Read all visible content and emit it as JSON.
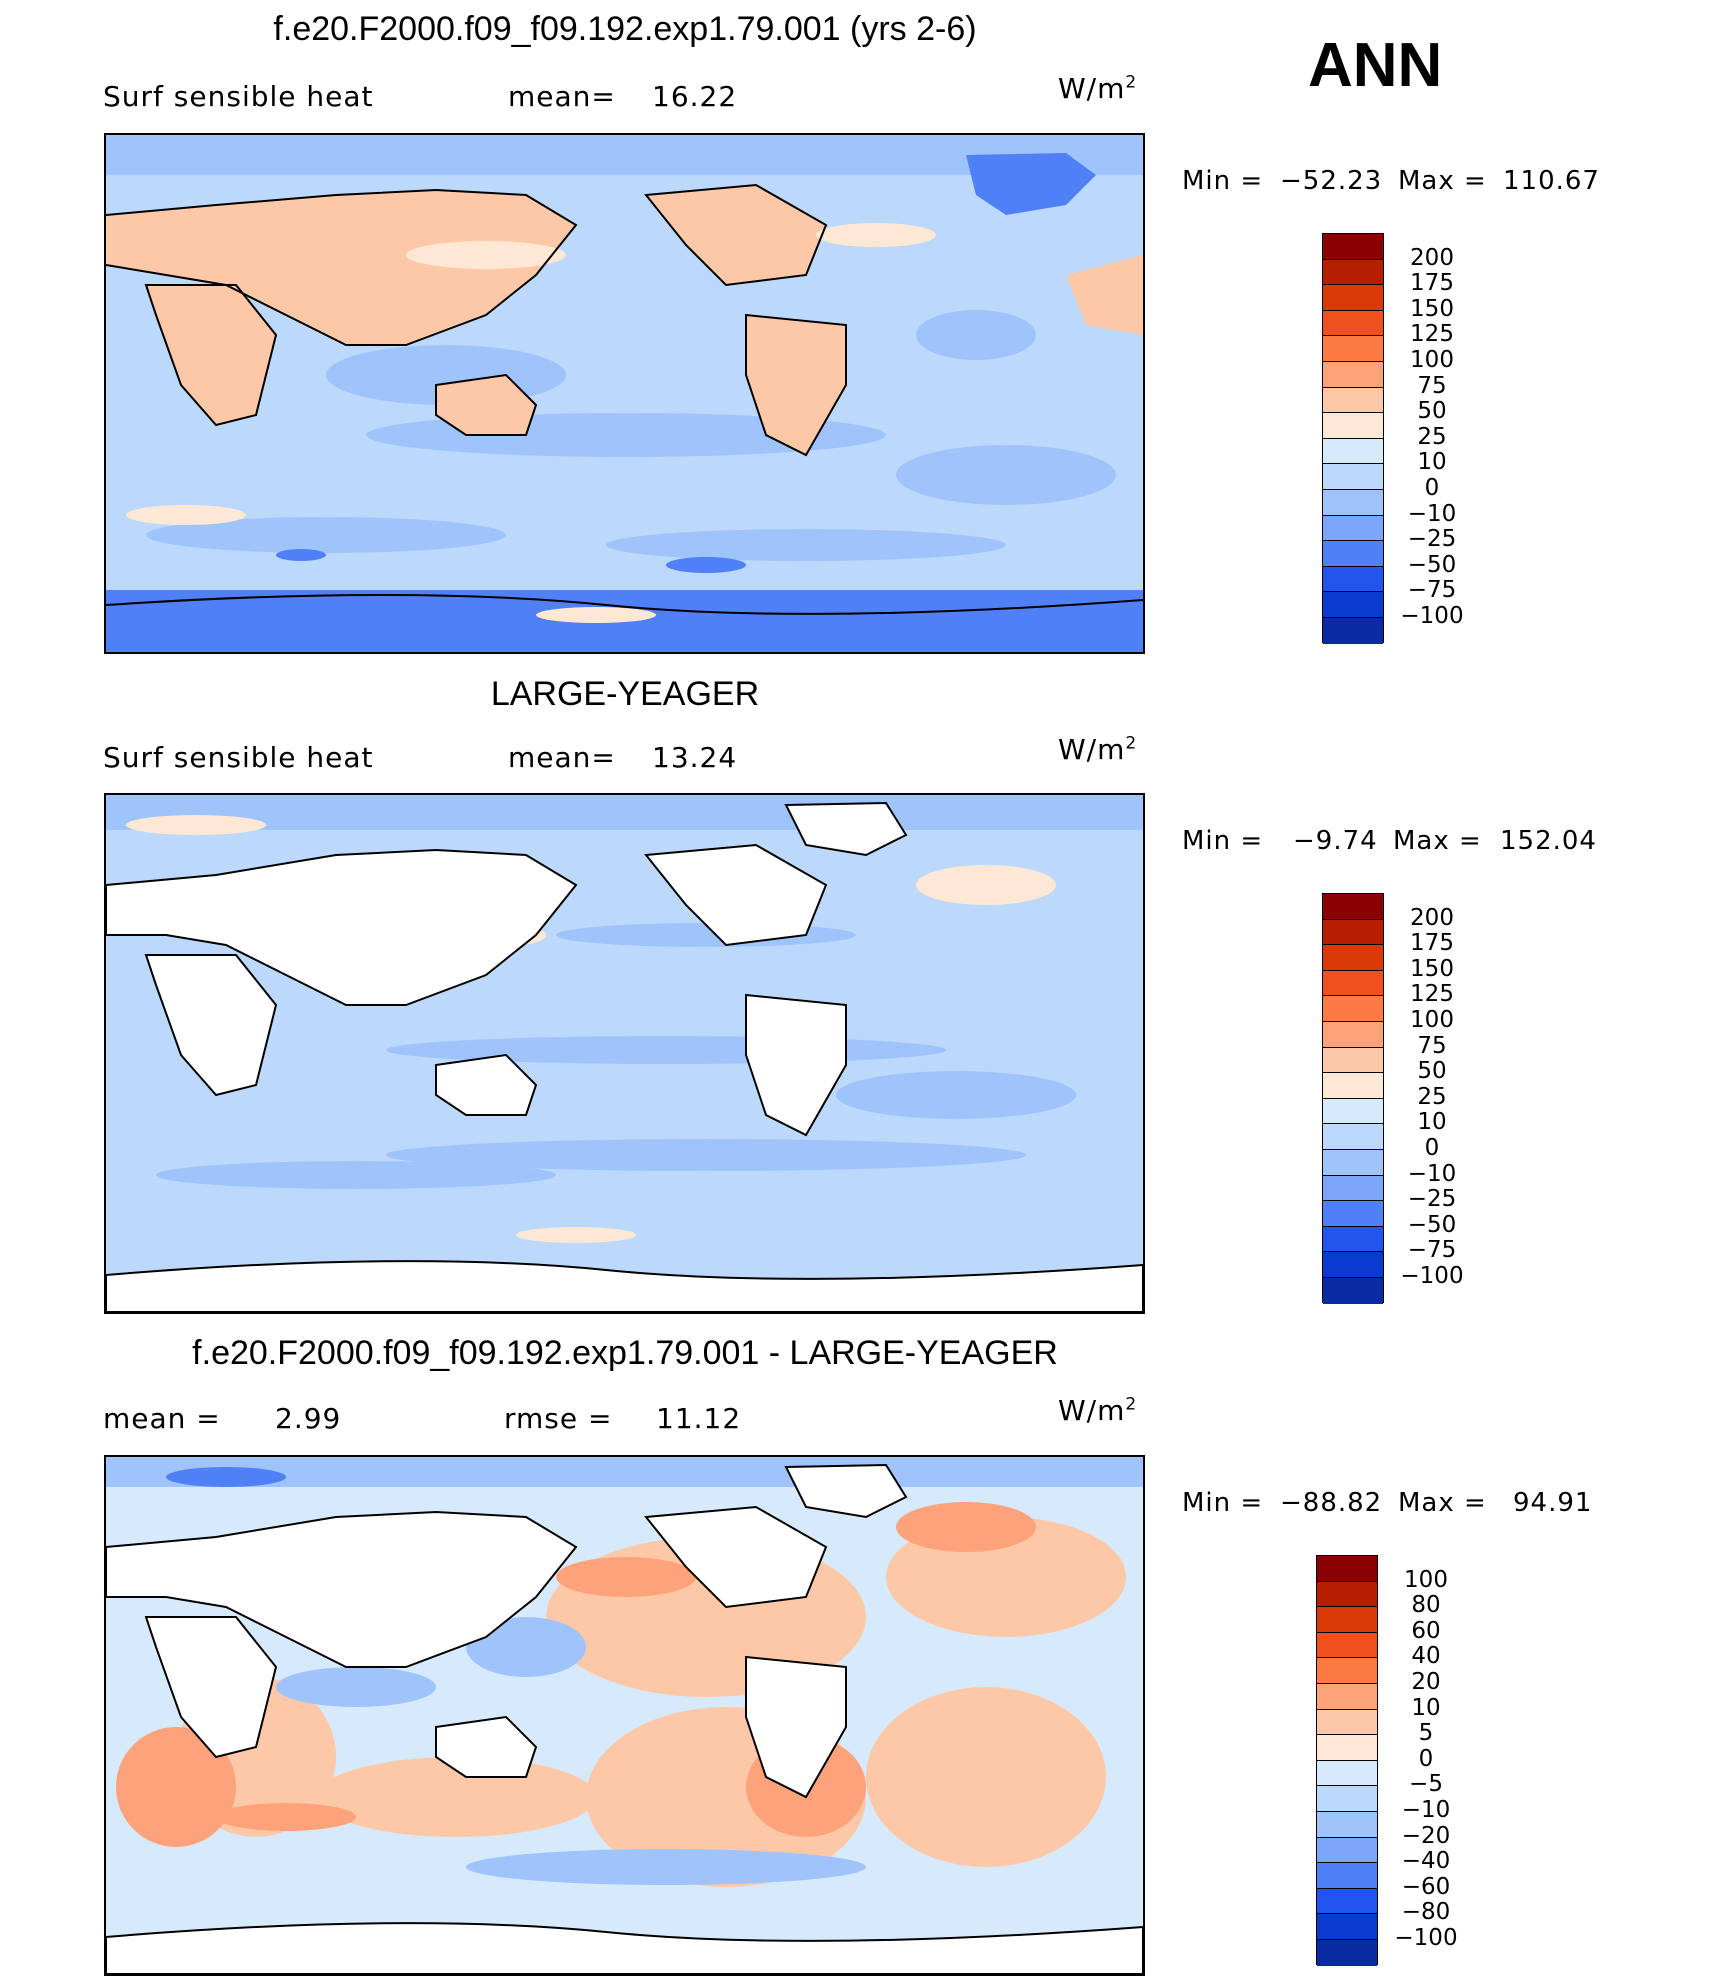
{
  "header": {
    "season": "ANN"
  },
  "chart_data": [
    {
      "type": "heatmap",
      "title": "f.e20.F2000.f09_f09.192.exp1.79.001 (yrs 2-6)",
      "variable": "Surf  sensible  heat",
      "stat1_label": "mean=",
      "stat1_value": "16.22",
      "units": "W/m",
      "units_exp": "2",
      "min_label": "Min  =",
      "min_value": "−52.23",
      "max_label": "Max  =",
      "max_value": "110.67",
      "min": -52.23,
      "max": 110.67,
      "contour_levels": [
        "200",
        "175",
        "150",
        "125",
        "100",
        "75",
        "50",
        "25",
        "10",
        "0",
        "−10",
        "−25",
        "−50",
        "−75",
        "−100"
      ],
      "colors": [
        "#8b0000",
        "#b51f00",
        "#d93a06",
        "#f0501e",
        "#fd7a45",
        "#fda27a",
        "#fdc8a8",
        "#fde8d6",
        "#d6eafc",
        "#bcd9fb",
        "#9fc3fb",
        "#7ca6fa",
        "#4f80f5",
        "#2255ee",
        "#0b3ad1",
        "#082aa3",
        "#061a73"
      ]
    },
    {
      "type": "heatmap",
      "title": "LARGE-YEAGER",
      "variable": "Surf  sensible  heat",
      "stat1_label": "mean=",
      "stat1_value": "13.24",
      "units": "W/m",
      "units_exp": "2",
      "min_label": "Min  =",
      "min_value": "−9.74",
      "max_label": "Max  =",
      "max_value": "152.04",
      "min": -9.74,
      "max": 152.04,
      "contour_levels": [
        "200",
        "175",
        "150",
        "125",
        "100",
        "75",
        "50",
        "25",
        "10",
        "0",
        "−10",
        "−25",
        "−50",
        "−75",
        "−100"
      ],
      "colors": [
        "#8b0000",
        "#b51f00",
        "#d93a06",
        "#f0501e",
        "#fd7a45",
        "#fda27a",
        "#fdc8a8",
        "#fde8d6",
        "#d6eafc",
        "#bcd9fb",
        "#9fc3fb",
        "#7ca6fa",
        "#4f80f5",
        "#2255ee",
        "#0b3ad1",
        "#082aa3",
        "#061a73"
      ]
    },
    {
      "type": "heatmap",
      "title": "f.e20.F2000.f09_f09.192.exp1.79.001 - LARGE-YEAGER",
      "stat1_label": "mean =",
      "stat1_value": "2.99",
      "stat2_label": "rmse  =",
      "stat2_value": "11.12",
      "units": "W/m",
      "units_exp": "2",
      "min_label": "Min  =",
      "min_value": "−88.82",
      "max_label": "Max  =",
      "max_value": "94.91",
      "min": -88.82,
      "max": 94.91,
      "contour_levels": [
        "100",
        "80",
        "60",
        "40",
        "20",
        "10",
        "5",
        "0",
        "−5",
        "−10",
        "−20",
        "−40",
        "−60",
        "−80",
        "−100"
      ],
      "colors": [
        "#8b0000",
        "#b51f00",
        "#d93a06",
        "#f0501e",
        "#fd7a45",
        "#fda27a",
        "#fdc8a8",
        "#fde8d6",
        "#d6eafc",
        "#bcd9fb",
        "#9fc3fb",
        "#7ca6fa",
        "#4f80f5",
        "#2255ee",
        "#0b3ad1",
        "#082aa3",
        "#061a73"
      ]
    }
  ]
}
